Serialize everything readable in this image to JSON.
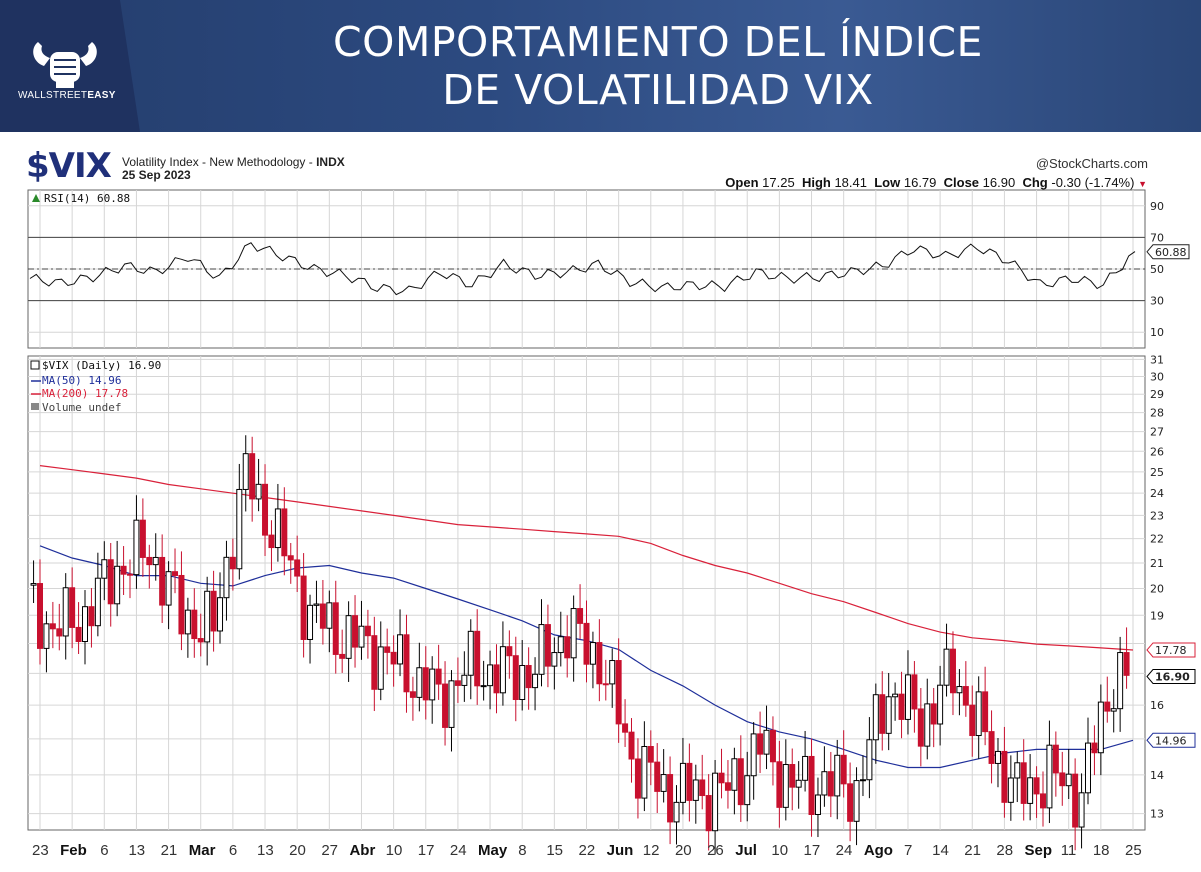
{
  "banner": {
    "title_line1": "COMPORTAMIENTO DEL ÍNDICE",
    "title_line2": "DE VOLATILIDAD VIX",
    "logo_text_light": "WALLSTREET",
    "logo_text_bold": "EASY"
  },
  "header": {
    "symbol": "$VIX",
    "description": "Volatility Index - New Methodology - ",
    "exchange": "INDX",
    "date": "25 Sep 2023",
    "watermark": "@StockCharts.com",
    "open_label": "Open",
    "open": "17.25",
    "high_label": "High",
    "high": "18.41",
    "low_label": "Low",
    "low": "16.79",
    "close_label": "Close",
    "close": "16.90",
    "chg_label": "Chg",
    "chg": "-0.30 (-1.74%)"
  },
  "colors": {
    "up": "#000000",
    "down": "#c8102e",
    "ma50": "#1f2f9a",
    "ma200": "#d9213a",
    "grid": "#d6d6d6"
  },
  "chart_data": [
    {
      "type": "line",
      "panel": "RSI",
      "legend": "RSI(14) 60.88",
      "last_value": "60.88",
      "yticks": [
        10,
        30,
        50,
        70,
        90
      ],
      "ylim": [
        0,
        100
      ],
      "reference_lines": [
        30,
        50,
        70
      ],
      "x": [
        "2023-01-23",
        "2023-01-30",
        "2023-02-06",
        "2023-02-13",
        "2023-02-20",
        "2023-02-27",
        "2023-03-06",
        "2023-03-13",
        "2023-03-20",
        "2023-03-27",
        "2023-04-03",
        "2023-04-10",
        "2023-04-17",
        "2023-04-24",
        "2023-05-01",
        "2023-05-08",
        "2023-05-15",
        "2023-05-22",
        "2023-05-29",
        "2023-06-05",
        "2023-06-12",
        "2023-06-19",
        "2023-06-26",
        "2023-07-03",
        "2023-07-10",
        "2023-07-17",
        "2023-07-24",
        "2023-07-31",
        "2023-08-07",
        "2023-08-14",
        "2023-08-21",
        "2023-08-28",
        "2023-09-04",
        "2023-09-11",
        "2023-09-18",
        "2023-09-25"
      ],
      "values": [
        44,
        41,
        45,
        52,
        48,
        58,
        44,
        66,
        58,
        50,
        46,
        38,
        36,
        48,
        40,
        53,
        46,
        48,
        53,
        42,
        38,
        40,
        39,
        48,
        44,
        45,
        48,
        52,
        63,
        58,
        64,
        55,
        40,
        44,
        40,
        61
      ]
    },
    {
      "type": "candlestick",
      "panel": "Price",
      "legend_price": "$VIX (Daily) 16.90",
      "legend_ma50": "MA(50) 14.96",
      "legend_ma200": "MA(200) 17.78",
      "legend_volume": "Volume undef",
      "yticks": [
        13,
        14,
        15,
        16,
        17,
        18,
        19,
        20,
        21,
        22,
        23,
        24,
        25,
        26,
        27,
        28,
        29,
        30,
        31
      ],
      "ytick_labels": [
        "13",
        "14",
        "",
        "16",
        "",
        "",
        "19",
        "20",
        "21",
        "22",
        "23",
        "24",
        "25",
        "26",
        "27",
        "28",
        "29",
        "30",
        "31"
      ],
      "ylog": true,
      "ylim": [
        12.6,
        31.2
      ],
      "last_labels": [
        {
          "text": "17.78",
          "value": 17.78,
          "color": "#d9213a"
        },
        {
          "text": "16.90",
          "value": 16.9,
          "color": "#000000"
        },
        {
          "text": "14.96",
          "value": 14.96,
          "color": "#1f2f9a"
        }
      ],
      "x_labels": [
        "23",
        "Feb",
        "6",
        "13",
        "21",
        "Mar",
        "6",
        "13",
        "20",
        "27",
        "Abr",
        "10",
        "17",
        "24",
        "May",
        "8",
        "15",
        "22",
        "Jun",
        "12",
        "20",
        "26",
        "Jul",
        "10",
        "17",
        "24",
        "Ago",
        "7",
        "14",
        "21",
        "28",
        "Sep",
        "11",
        "18",
        "25"
      ],
      "x_bold": [
        "Feb",
        "Mar",
        "Abr",
        "May",
        "Jun",
        "Jul",
        "Ago",
        "Sep"
      ],
      "weekly_close": [
        19.8,
        18.5,
        19.0,
        20.8,
        21.5,
        19.0,
        18.5,
        24.8,
        22.0,
        19.0,
        18.3,
        17.8,
        17.1,
        16.2,
        17.2,
        17.0,
        17.1,
        18.5,
        17.5,
        14.5,
        13.6,
        13.5,
        13.6,
        14.8,
        13.7,
        13.8,
        13.6,
        16.5,
        15.5,
        17.0,
        15.0,
        13.5,
        14.0,
        13.5,
        16.9
      ],
      "ma50": [
        21.7,
        21.2,
        20.9,
        20.5,
        20.5,
        20.2,
        20.1,
        20.5,
        20.8,
        20.9,
        20.6,
        20.4,
        20.0,
        19.6,
        19.2,
        18.8,
        18.3,
        18.1,
        17.8,
        17.1,
        16.6,
        16.0,
        15.5,
        15.2,
        15.0,
        14.7,
        14.4,
        14.2,
        14.2,
        14.4,
        14.6,
        14.7,
        14.7,
        14.7,
        14.96
      ],
      "ma200": [
        25.3,
        25.1,
        24.9,
        24.7,
        24.4,
        24.2,
        24.0,
        23.8,
        23.6,
        23.4,
        23.2,
        23.0,
        22.8,
        22.6,
        22.5,
        22.4,
        22.3,
        22.2,
        22.1,
        21.8,
        21.3,
        20.9,
        20.6,
        20.2,
        19.8,
        19.5,
        19.1,
        18.7,
        18.4,
        18.2,
        18.1,
        17.98,
        17.92,
        17.85,
        17.78
      ]
    }
  ]
}
